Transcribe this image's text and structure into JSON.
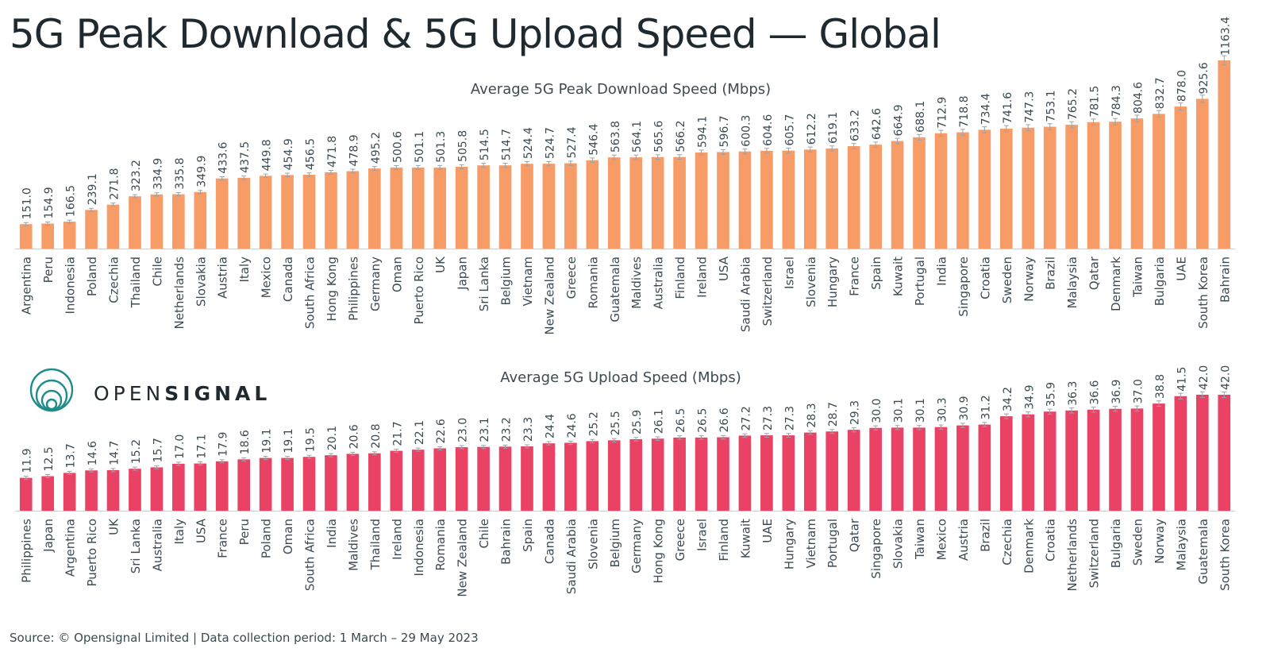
{
  "title": "5G Peak Download & 5G Upload Speed — Global",
  "footer": "Source:  © Opensignal Limited  |  Data collection period: 1 March – 29 May 2023",
  "logo": {
    "prefix": "OPEN",
    "suffix": "SIGNAL"
  },
  "colors": {
    "download": "#f79b67",
    "upload": "#ea4265",
    "text": "#3c4a52",
    "axis": "#c9cfd2"
  },
  "chart_data": [
    {
      "type": "bar",
      "title": "Average 5G Peak Download Speed (Mbps)",
      "categories": [
        "Argentina",
        "Peru",
        "Indonesia",
        "Poland",
        "Czechia",
        "Thailand",
        "Chile",
        "Netherlands",
        "Slovakia",
        "Austria",
        "Italy",
        "Mexico",
        "Canada",
        "South Africa",
        "Hong Kong",
        "Philippines",
        "Germany",
        "Oman",
        "Puerto Rico",
        "UK",
        "Japan",
        "Sri Lanka",
        "Belgium",
        "Vietnam",
        "New Zealand",
        "Greece",
        "Romania",
        "Guatemala",
        "Maldives",
        "Australia",
        "Finland",
        "Ireland",
        "USA",
        "Saudi Arabia",
        "Switzerland",
        "Israel",
        "Slovenia",
        "Hungary",
        "France",
        "Spain",
        "Kuwait",
        "Portugal",
        "India",
        "Singapore",
        "Croatia",
        "Sweden",
        "Norway",
        "Brazil",
        "Malaysia",
        "Qatar",
        "Denmark",
        "Taiwan",
        "Bulgaria",
        "UAE",
        "South Korea",
        "Bahrain"
      ],
      "values": [
        151.0,
        154.9,
        166.5,
        239.1,
        271.8,
        323.2,
        334.9,
        335.8,
        349.9,
        433.6,
        437.5,
        449.8,
        454.9,
        456.5,
        471.8,
        478.9,
        495.2,
        500.6,
        501.1,
        501.3,
        505.8,
        514.5,
        514.7,
        524.4,
        524.7,
        527.4,
        546.4,
        563.8,
        564.1,
        565.6,
        566.2,
        594.1,
        596.7,
        600.3,
        604.6,
        605.7,
        612.2,
        619.1,
        633.2,
        642.6,
        664.9,
        688.1,
        712.9,
        718.8,
        734.4,
        741.6,
        747.3,
        753.1,
        765.2,
        781.5,
        784.3,
        804.6,
        832.7,
        878.0,
        925.6,
        1163.4
      ],
      "ylim": [
        0,
        1163.4
      ],
      "error_bars": true
    },
    {
      "type": "bar",
      "title": "Average 5G Upload Speed (Mbps)",
      "categories": [
        "Philippines",
        "Japan",
        "Argentina",
        "Puerto Rico",
        "UK",
        "Sri Lanka",
        "Australia",
        "Italy",
        "USA",
        "France",
        "Peru",
        "Poland",
        "Oman",
        "South Africa",
        "India",
        "Maldives",
        "Thailand",
        "Ireland",
        "Indonesia",
        "Romania",
        "New Zealand",
        "Chile",
        "Bahrain",
        "Spain",
        "Canada",
        "Saudi Arabia",
        "Slovenia",
        "Belgium",
        "Germany",
        "Hong Kong",
        "Greece",
        "Israel",
        "Finland",
        "Kuwait",
        "UAE",
        "Hungary",
        "Vietnam",
        "Portugal",
        "Qatar",
        "Singapore",
        "Slovakia",
        "Taiwan",
        "Mexico",
        "Austria",
        "Brazil",
        "Czechia",
        "Denmark",
        "Croatia",
        "Netherlands",
        "Switzerland",
        "Bulgaria",
        "Sweden",
        "Norway",
        "Malaysia",
        "Guatemala",
        "South Korea"
      ],
      "values": [
        11.9,
        12.5,
        13.7,
        14.6,
        14.7,
        15.2,
        15.7,
        17.0,
        17.1,
        17.9,
        18.6,
        19.1,
        19.1,
        19.5,
        20.1,
        20.6,
        20.8,
        21.7,
        22.1,
        22.6,
        23.0,
        23.1,
        23.2,
        23.3,
        24.4,
        24.6,
        25.2,
        25.5,
        25.9,
        26.1,
        26.5,
        26.5,
        26.6,
        27.2,
        27.3,
        27.3,
        28.3,
        28.7,
        29.3,
        30.0,
        30.1,
        30.1,
        30.3,
        30.9,
        31.2,
        34.2,
        34.9,
        35.9,
        36.3,
        36.6,
        36.9,
        37.0,
        38.8,
        41.5,
        42.0,
        42.0
      ],
      "ylim": [
        0,
        42.0
      ],
      "error_bars": true
    }
  ]
}
